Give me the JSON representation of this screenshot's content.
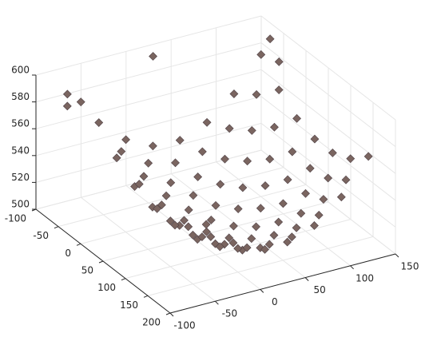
{
  "chart_data": {
    "type": "scatter3d",
    "x": [
      -60,
      -30,
      0,
      30,
      60,
      90,
      120,
      -60,
      -30,
      0,
      30,
      60,
      90,
      120,
      -60,
      -30,
      0,
      30,
      60,
      90,
      120,
      -60,
      -30,
      0,
      30,
      60,
      90,
      120,
      -60,
      -30,
      0,
      30,
      60,
      90,
      120,
      -60,
      -30,
      0,
      30,
      60,
      90,
      120,
      -60,
      -30,
      0,
      30,
      60,
      90,
      120,
      -45,
      -15,
      15,
      45,
      75,
      105,
      -45,
      -15,
      15,
      45,
      75,
      105,
      -45,
      -15,
      15,
      45,
      75,
      105,
      -45,
      -15,
      15,
      45,
      75,
      105,
      -45,
      -15,
      15,
      45,
      75,
      105,
      -45,
      -15,
      15,
      45,
      75,
      105,
      -80,
      -70,
      -90,
      20,
      140,
      130
    ],
    "y": [
      -40,
      -40,
      -40,
      -40,
      -40,
      -40,
      -40,
      0,
      0,
      0,
      0,
      0,
      0,
      0,
      40,
      40,
      40,
      40,
      40,
      40,
      40,
      80,
      80,
      80,
      80,
      80,
      80,
      80,
      120,
      120,
      120,
      120,
      120,
      120,
      120,
      160,
      160,
      160,
      160,
      160,
      160,
      160,
      200,
      200,
      200,
      200,
      200,
      200,
      200,
      -20,
      -20,
      -20,
      -20,
      -20,
      -20,
      20,
      20,
      20,
      20,
      20,
      20,
      60,
      60,
      60,
      60,
      60,
      60,
      100,
      100,
      100,
      100,
      100,
      100,
      140,
      140,
      140,
      140,
      140,
      140,
      180,
      180,
      180,
      180,
      180,
      180,
      -70,
      -60,
      -50,
      -80,
      -60,
      -20
    ],
    "z": [
      573,
      555,
      545,
      544,
      552,
      568,
      592,
      557,
      538,
      528,
      527,
      535,
      551,
      576,
      546,
      527,
      518,
      516,
      524,
      540,
      565,
      541,
      522,
      512,
      511,
      519,
      535,
      560,
      541,
      522,
      513,
      512,
      519,
      535,
      560,
      547,
      529,
      519,
      518,
      525,
      541,
      566,
      559,
      540,
      531,
      530,
      537,
      553,
      578,
      554,
      540,
      535,
      538,
      550,
      570,
      540,
      526,
      521,
      524,
      536,
      556,
      532,
      518,
      513,
      516,
      528,
      548,
      530,
      516,
      510,
      513,
      525,
      546,
      533,
      519,
      513,
      517,
      528,
      549,
      542,
      528,
      522,
      526,
      537,
      558,
      590,
      585,
      588,
      598,
      595,
      590
    ],
    "color": "#7a6560",
    "xlim": [
      -100,
      150
    ],
    "ylim": [
      -100,
      200
    ],
    "zlim": [
      500,
      600
    ],
    "xticks": [
      -100,
      -50,
      0,
      50,
      100,
      150
    ],
    "yticks": [
      -100,
      -50,
      0,
      50,
      100,
      150,
      200
    ],
    "zticks": [
      500,
      520,
      540,
      560,
      580,
      600
    ],
    "grid": true
  }
}
